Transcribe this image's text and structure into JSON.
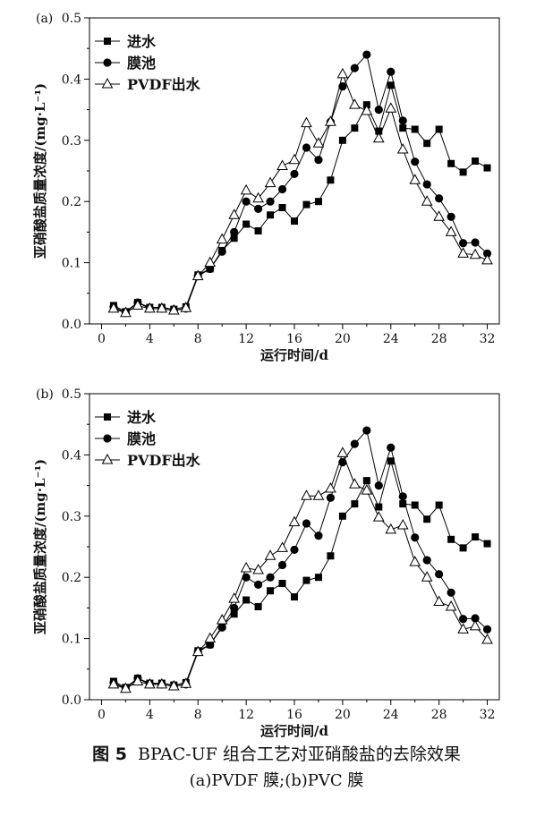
{
  "chart_data": [
    {
      "type": "line",
      "panel_label": "(a)",
      "xlabel": "运行时间/d",
      "ylabel": "亚硝酸盐质量浓度/(mg·L⁻¹)",
      "xlim": [
        -1,
        33
      ],
      "ylim": [
        0,
        0.5
      ],
      "xticks": [
        0,
        4,
        8,
        12,
        16,
        20,
        24,
        28,
        32
      ],
      "yticks": [
        0.0,
        0.1,
        0.2,
        0.3,
        0.4,
        0.5
      ],
      "xtick_labels": [
        "0",
        "4",
        "8",
        "12",
        "16",
        "20",
        "24",
        "28",
        "32"
      ],
      "ytick_labels": [
        "0.0",
        "0.1",
        "0.2",
        "0.3",
        "0.4",
        "0.5"
      ],
      "legend_position": "top-left",
      "x": [
        1,
        2,
        3,
        4,
        5,
        6,
        7,
        8,
        9,
        10,
        11,
        12,
        13,
        14,
        15,
        16,
        17,
        18,
        19,
        20,
        21,
        22,
        23,
        24,
        25,
        26,
        27,
        28,
        29,
        30,
        31,
        32
      ],
      "series": [
        {
          "name": "进水",
          "marker": "square",
          "values": [
            0.03,
            0.02,
            0.035,
            0.027,
            0.027,
            0.024,
            0.028,
            0.08,
            0.09,
            0.12,
            0.14,
            0.163,
            0.152,
            0.178,
            0.19,
            0.168,
            0.195,
            0.2,
            0.235,
            0.3,
            0.32,
            0.358,
            0.315,
            0.39,
            0.32,
            0.318,
            0.295,
            0.318,
            0.262,
            0.248,
            0.266,
            0.255
          ]
        },
        {
          "name": "膜池",
          "marker": "circle",
          "values": [
            0.028,
            0.018,
            0.035,
            0.025,
            0.025,
            0.022,
            0.025,
            0.078,
            0.09,
            0.118,
            0.15,
            0.2,
            0.188,
            0.2,
            0.22,
            0.245,
            0.288,
            0.268,
            0.33,
            0.388,
            0.418,
            0.44,
            0.35,
            0.412,
            0.332,
            0.265,
            0.228,
            0.205,
            0.175,
            0.132,
            0.133,
            0.115
          ]
        },
        {
          "name": "PVDF出水",
          "marker": "triangle-open",
          "values": [
            0.025,
            0.018,
            0.03,
            0.025,
            0.025,
            0.022,
            0.026,
            0.078,
            0.1,
            0.138,
            0.178,
            0.218,
            0.205,
            0.23,
            0.258,
            0.268,
            0.328,
            0.295,
            0.33,
            0.408,
            0.358,
            0.348,
            0.303,
            0.352,
            0.285,
            0.235,
            0.2,
            0.175,
            0.15,
            0.115,
            0.113,
            0.104
          ]
        }
      ]
    },
    {
      "type": "line",
      "panel_label": "(b)",
      "xlabel": "运行时间/d",
      "ylabel": "亚硝酸盐质量浓度/(mg·L⁻¹)",
      "xlim": [
        -1,
        33
      ],
      "ylim": [
        0,
        0.5
      ],
      "xticks": [
        0,
        4,
        8,
        12,
        16,
        20,
        24,
        28,
        32
      ],
      "yticks": [
        0.0,
        0.1,
        0.2,
        0.3,
        0.4,
        0.5
      ],
      "xtick_labels": [
        "0",
        "4",
        "8",
        "12",
        "16",
        "20",
        "24",
        "28",
        "32"
      ],
      "ytick_labels": [
        "0.0",
        "0.1",
        "0.2",
        "0.3",
        "0.4",
        "0.5"
      ],
      "legend_position": "top-left",
      "x": [
        1,
        2,
        3,
        4,
        5,
        6,
        7,
        8,
        9,
        10,
        11,
        12,
        13,
        14,
        15,
        16,
        17,
        18,
        19,
        20,
        21,
        22,
        23,
        24,
        25,
        26,
        27,
        28,
        29,
        30,
        31,
        32
      ],
      "series": [
        {
          "name": "进水",
          "marker": "square",
          "values": [
            0.03,
            0.02,
            0.035,
            0.027,
            0.027,
            0.024,
            0.028,
            0.08,
            0.09,
            0.12,
            0.14,
            0.163,
            0.152,
            0.178,
            0.19,
            0.168,
            0.195,
            0.2,
            0.235,
            0.3,
            0.32,
            0.358,
            0.315,
            0.39,
            0.32,
            0.318,
            0.295,
            0.318,
            0.262,
            0.248,
            0.266,
            0.255
          ]
        },
        {
          "name": "膜池",
          "marker": "circle",
          "values": [
            0.028,
            0.018,
            0.035,
            0.025,
            0.025,
            0.022,
            0.025,
            0.078,
            0.09,
            0.118,
            0.15,
            0.2,
            0.188,
            0.2,
            0.22,
            0.245,
            0.288,
            0.268,
            0.33,
            0.388,
            0.418,
            0.44,
            0.35,
            0.412,
            0.332,
            0.265,
            0.228,
            0.205,
            0.175,
            0.132,
            0.133,
            0.115
          ]
        },
        {
          "name": "PVDF出水",
          "marker": "triangle-open",
          "values": [
            0.025,
            0.018,
            0.03,
            0.025,
            0.025,
            0.022,
            0.026,
            0.078,
            0.1,
            0.13,
            0.165,
            0.215,
            0.212,
            0.235,
            0.248,
            0.29,
            0.333,
            0.333,
            0.345,
            0.403,
            0.352,
            0.342,
            0.298,
            0.278,
            0.285,
            0.225,
            0.2,
            0.16,
            0.152,
            0.115,
            0.12,
            0.098
          ]
        }
      ]
    }
  ],
  "caption": {
    "label": "图 5",
    "title": "BPAC-UF 组合工艺对亚硝酸盐的去除效果",
    "subtitle": "(a)PVDF 膜;(b)PVC 膜"
  }
}
